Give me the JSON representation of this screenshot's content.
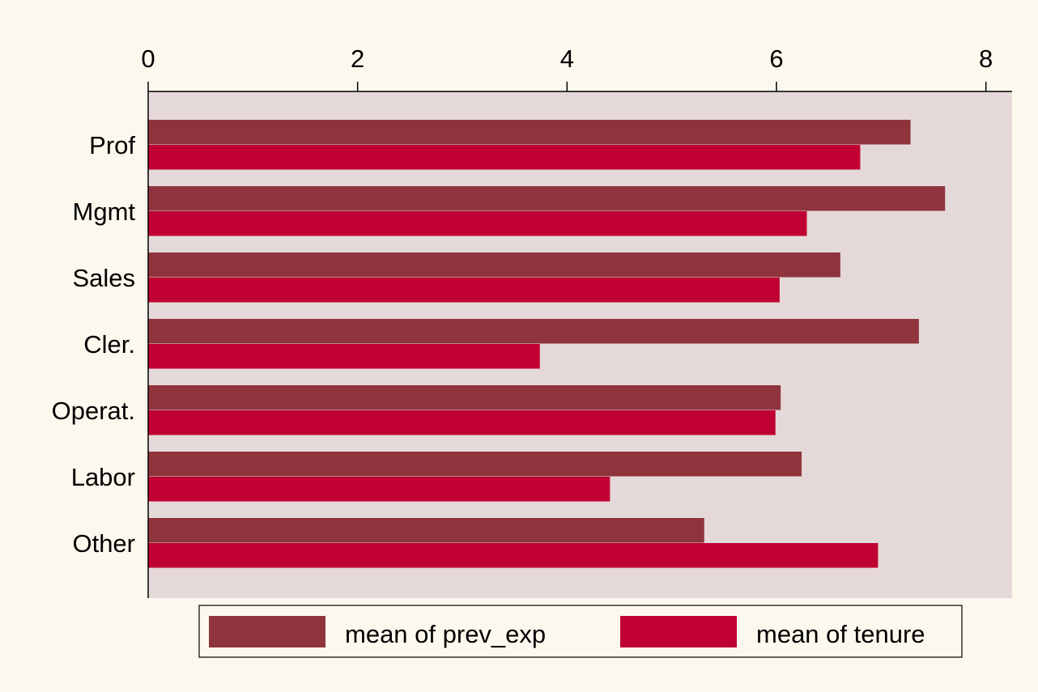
{
  "chart_data": {
    "type": "bar",
    "orientation": "horizontal",
    "categories": [
      "Prof",
      "Mgmt",
      "Sales",
      "Cler.",
      "Operat.",
      "Labor",
      "Other"
    ],
    "series": [
      {
        "name": "mean of prev_exp",
        "color": "#8f343d",
        "values": [
          7.28,
          7.61,
          6.61,
          7.36,
          6.04,
          6.24,
          5.31
        ]
      },
      {
        "name": "mean of tenure",
        "color": "#c00032",
        "values": [
          6.8,
          6.29,
          6.03,
          3.74,
          5.99,
          4.41,
          6.97
        ]
      }
    ],
    "xlim": [
      0,
      8.25
    ],
    "xticks": [
      "0",
      "2",
      "4",
      "6",
      "8"
    ],
    "xtick_values": [
      0,
      2,
      4,
      6,
      8
    ],
    "x_axis_position": "top",
    "xlabel": "",
    "ylabel": "",
    "title": "",
    "grid": false,
    "legend": {
      "position": "bottom",
      "entries": [
        "mean of prev_exp",
        "mean of tenure"
      ]
    },
    "colors": {
      "page_background": "#fdf8ed",
      "plot_background": "#e4d9d8",
      "axis": "#000000"
    }
  }
}
